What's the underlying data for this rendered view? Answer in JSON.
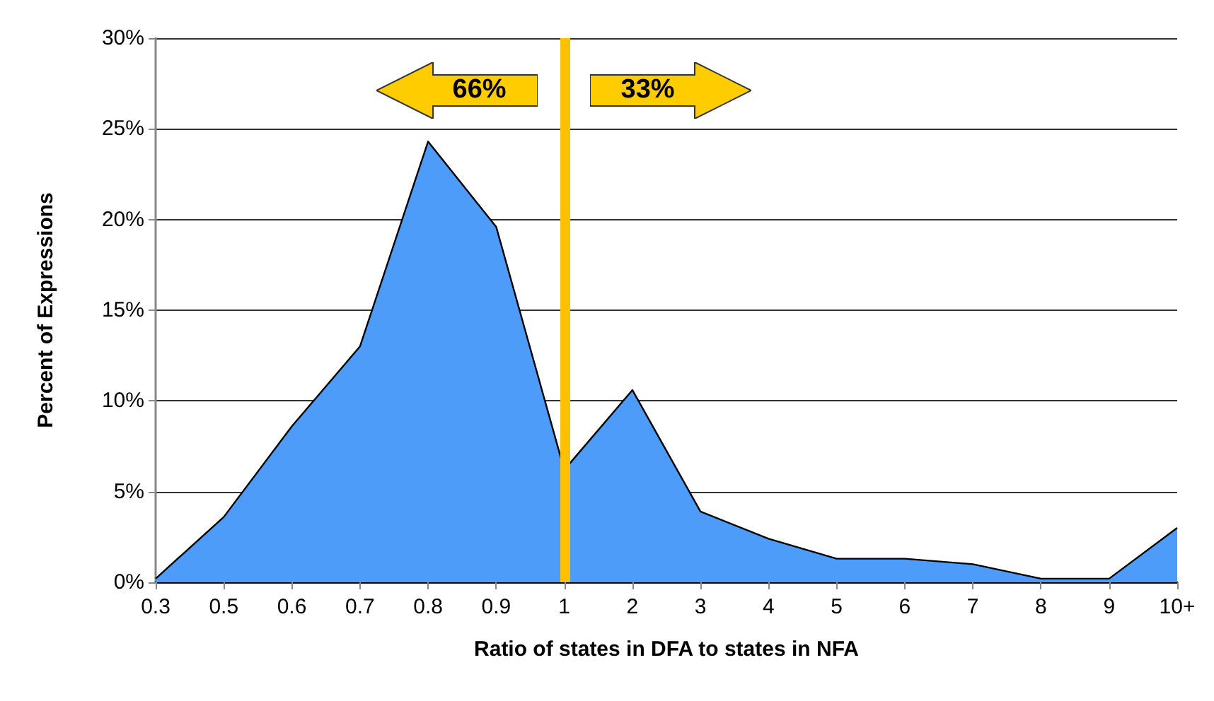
{
  "chart_data": {
    "type": "area",
    "xlabel": "Ratio of states in DFA to states in NFA",
    "ylabel": "Percent of Expressions",
    "categories": [
      "0.3",
      "0.5",
      "0.6",
      "0.7",
      "0.8",
      "0.9",
      "1",
      "2",
      "3",
      "4",
      "5",
      "6",
      "7",
      "8",
      "9",
      "10+"
    ],
    "series": [
      {
        "color": "#4d9cfa",
        "values": [
          0.2,
          3.6,
          8.6,
          13.0,
          24.3,
          19.6,
          6.2,
          10.6,
          3.9,
          2.4,
          1.3,
          1.3,
          1.0,
          0.2,
          0.2,
          3.0
        ]
      }
    ],
    "ylim": [
      0,
      30
    ],
    "yticks": [
      {
        "value": 0,
        "label": "0%"
      },
      {
        "value": 5,
        "label": "5%"
      },
      {
        "value": 10,
        "label": "10%"
      },
      {
        "value": 15,
        "label": "15%"
      },
      {
        "value": 20,
        "label": "20%"
      },
      {
        "value": 25,
        "label": "25%"
      },
      {
        "value": 30,
        "label": "30%"
      }
    ],
    "grid": "y",
    "ref_lines": [
      {
        "axis": "x",
        "value": "1",
        "label": null,
        "color": "#ffc000"
      }
    ],
    "annotations": [
      "66%",
      "33%"
    ]
  }
}
